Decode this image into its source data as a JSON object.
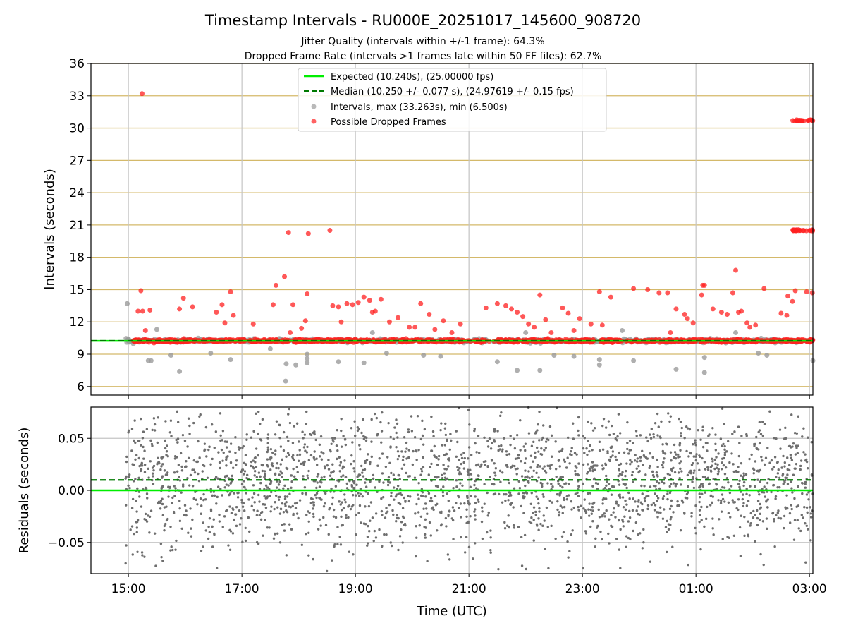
{
  "figure": {
    "title": "Timestamp Intervals - RU000E_20251017_145600_908720",
    "subtitle_1": "Jitter Quality (intervals within +/-1 frame): 64.3%",
    "subtitle_2": "Dropped Frame Rate (intervals >1 frames late within 50 FF files): 62.7%",
    "colors": {
      "expected": "#00ee00",
      "median": "#007a00",
      "intervals": "#9b9b9b",
      "dropped": "#ff2020",
      "residuals": "#6e6e6e",
      "hgrid": "#d4b96a",
      "vgrid": "#c4c4c4"
    }
  },
  "chart_data": [
    {
      "type": "scatter",
      "panel": "intervals",
      "ylabel": "Intervals (seconds)",
      "xlabel": "",
      "x_unit": "hours since 00:00 UTC (day 1); values >24 are next day",
      "xlim": [
        14.34,
        27.06
      ],
      "ylim": [
        5.2,
        36
      ],
      "yticks": [
        6,
        9,
        12,
        15,
        18,
        21,
        24,
        27,
        30,
        33,
        36
      ],
      "ytick_labels": [
        "6",
        "9",
        "12",
        "15",
        "18",
        "21",
        "24",
        "27",
        "30",
        "33",
        "36"
      ],
      "xticks": [
        15,
        17,
        19,
        21,
        23,
        25,
        27
      ],
      "hgrid": true,
      "vgrid": true,
      "legend": {
        "placement": "upper-center",
        "entries": [
          "Expected (10.240s), (25.00000 fps)",
          "Median (10.250 +/- 0.077 s), (24.97619 +/- 0.15 fps)",
          "Intervals, max (33.263s), min (6.500s)",
          "Possible Dropped Frames"
        ]
      },
      "series": [
        {
          "name": "Expected",
          "kind": "hline",
          "y": 10.24,
          "style": "solid",
          "x_range": [
            14.34,
            27.06
          ]
        },
        {
          "name": "Median",
          "kind": "hline",
          "y": 10.25,
          "style": "dashed",
          "x_range": [
            14.34,
            27.06
          ]
        },
        {
          "name": "Intervals",
          "kind": "scatter",
          "baseline": 10.25,
          "x_range": [
            14.95,
            27.06
          ],
          "outliers": [
            {
              "x": 14.98,
              "y": 13.7
            },
            {
              "x": 15.35,
              "y": 8.4
            },
            {
              "x": 15.4,
              "y": 8.4
            },
            {
              "x": 15.5,
              "y": 11.3
            },
            {
              "x": 15.9,
              "y": 7.4
            },
            {
              "x": 15.75,
              "y": 8.9
            },
            {
              "x": 16.45,
              "y": 9.1
            },
            {
              "x": 16.8,
              "y": 8.5
            },
            {
              "x": 17.5,
              "y": 9.5
            },
            {
              "x": 17.77,
              "y": 6.5
            },
            {
              "x": 17.78,
              "y": 8.1
            },
            {
              "x": 17.95,
              "y": 8.0
            },
            {
              "x": 18.15,
              "y": 8.2
            },
            {
              "x": 18.15,
              "y": 8.6
            },
            {
              "x": 18.15,
              "y": 9.0
            },
            {
              "x": 18.7,
              "y": 8.3
            },
            {
              "x": 19.15,
              "y": 8.2
            },
            {
              "x": 19.55,
              "y": 9.1
            },
            {
              "x": 20.2,
              "y": 8.9
            },
            {
              "x": 20.5,
              "y": 8.8
            },
            {
              "x": 21.5,
              "y": 8.3
            },
            {
              "x": 21.85,
              "y": 7.5
            },
            {
              "x": 22.25,
              "y": 7.5
            },
            {
              "x": 22.5,
              "y": 8.9
            },
            {
              "x": 22.85,
              "y": 8.8
            },
            {
              "x": 23.3,
              "y": 8.5
            },
            {
              "x": 23.3,
              "y": 8.0
            },
            {
              "x": 23.9,
              "y": 8.4
            },
            {
              "x": 24.65,
              "y": 7.6
            },
            {
              "x": 25.15,
              "y": 7.3
            },
            {
              "x": 25.15,
              "y": 8.7
            },
            {
              "x": 26.1,
              "y": 9.1
            },
            {
              "x": 26.25,
              "y": 8.9
            },
            {
              "x": 27.06,
              "y": 8.4
            },
            {
              "x": 19.3,
              "y": 11.0
            },
            {
              "x": 22.0,
              "y": 11.0
            },
            {
              "x": 23.7,
              "y": 11.2
            },
            {
              "x": 25.7,
              "y": 11.0
            }
          ]
        },
        {
          "name": "Possible Dropped Frames",
          "kind": "scatter",
          "baseline": 10.25,
          "clusters": [
            {
              "y": 20.5,
              "x_range": [
                26.7,
                27.06
              ]
            },
            {
              "y": 30.7,
              "x_range": [
                26.7,
                27.06
              ]
            }
          ],
          "points": [
            {
              "x": 15.24,
              "y": 33.2
            },
            {
              "x": 15.17,
              "y": 13.0
            },
            {
              "x": 15.22,
              "y": 14.9
            },
            {
              "x": 15.25,
              "y": 13.0
            },
            {
              "x": 15.38,
              "y": 13.1
            },
            {
              "x": 15.3,
              "y": 11.2
            },
            {
              "x": 15.9,
              "y": 13.2
            },
            {
              "x": 15.97,
              "y": 14.2
            },
            {
              "x": 16.13,
              "y": 13.4
            },
            {
              "x": 16.55,
              "y": 12.9
            },
            {
              "x": 16.65,
              "y": 13.6
            },
            {
              "x": 16.8,
              "y": 14.8
            },
            {
              "x": 16.85,
              "y": 12.6
            },
            {
              "x": 16.7,
              "y": 11.9
            },
            {
              "x": 17.2,
              "y": 11.8
            },
            {
              "x": 17.55,
              "y": 13.6
            },
            {
              "x": 17.6,
              "y": 15.4
            },
            {
              "x": 17.75,
              "y": 16.2
            },
            {
              "x": 17.82,
              "y": 20.3
            },
            {
              "x": 17.85,
              "y": 11.0
            },
            {
              "x": 17.9,
              "y": 13.6
            },
            {
              "x": 18.05,
              "y": 11.4
            },
            {
              "x": 18.12,
              "y": 12.1
            },
            {
              "x": 18.15,
              "y": 14.6
            },
            {
              "x": 18.17,
              "y": 20.2
            },
            {
              "x": 18.55,
              "y": 20.5
            },
            {
              "x": 18.6,
              "y": 13.5
            },
            {
              "x": 18.7,
              "y": 13.4
            },
            {
              "x": 18.75,
              "y": 12.0
            },
            {
              "x": 18.85,
              "y": 13.7
            },
            {
              "x": 18.95,
              "y": 13.6
            },
            {
              "x": 19.05,
              "y": 13.8
            },
            {
              "x": 19.15,
              "y": 14.3
            },
            {
              "x": 19.25,
              "y": 14.0
            },
            {
              "x": 19.3,
              "y": 12.9
            },
            {
              "x": 19.35,
              "y": 13.0
            },
            {
              "x": 19.45,
              "y": 14.1
            },
            {
              "x": 19.6,
              "y": 12.0
            },
            {
              "x": 19.75,
              "y": 12.4
            },
            {
              "x": 19.95,
              "y": 11.5
            },
            {
              "x": 20.05,
              "y": 11.5
            },
            {
              "x": 20.15,
              "y": 13.7
            },
            {
              "x": 20.3,
              "y": 12.7
            },
            {
              "x": 20.4,
              "y": 11.3
            },
            {
              "x": 20.55,
              "y": 12.1
            },
            {
              "x": 20.7,
              "y": 11.0
            },
            {
              "x": 20.85,
              "y": 11.8
            },
            {
              "x": 21.3,
              "y": 13.3
            },
            {
              "x": 21.5,
              "y": 13.7
            },
            {
              "x": 21.65,
              "y": 13.5
            },
            {
              "x": 21.75,
              "y": 13.2
            },
            {
              "x": 21.85,
              "y": 12.9
            },
            {
              "x": 21.95,
              "y": 12.5
            },
            {
              "x": 22.05,
              "y": 11.8
            },
            {
              "x": 22.15,
              "y": 11.5
            },
            {
              "x": 22.25,
              "y": 14.5
            },
            {
              "x": 22.35,
              "y": 12.2
            },
            {
              "x": 22.45,
              "y": 11.0
            },
            {
              "x": 22.65,
              "y": 13.3
            },
            {
              "x": 22.75,
              "y": 12.8
            },
            {
              "x": 22.85,
              "y": 11.2
            },
            {
              "x": 22.95,
              "y": 12.3
            },
            {
              "x": 23.15,
              "y": 11.8
            },
            {
              "x": 23.3,
              "y": 14.8
            },
            {
              "x": 23.35,
              "y": 11.7
            },
            {
              "x": 23.5,
              "y": 14.3
            },
            {
              "x": 23.9,
              "y": 15.1
            },
            {
              "x": 24.15,
              "y": 15.0
            },
            {
              "x": 24.35,
              "y": 14.7
            },
            {
              "x": 24.5,
              "y": 14.7
            },
            {
              "x": 24.65,
              "y": 13.2
            },
            {
              "x": 24.8,
              "y": 12.7
            },
            {
              "x": 24.85,
              "y": 12.3
            },
            {
              "x": 24.95,
              "y": 11.9
            },
            {
              "x": 24.55,
              "y": 11.0
            },
            {
              "x": 25.12,
              "y": 15.4
            },
            {
              "x": 25.15,
              "y": 15.4
            },
            {
              "x": 25.1,
              "y": 14.5
            },
            {
              "x": 25.3,
              "y": 13.2
            },
            {
              "x": 25.45,
              "y": 12.9
            },
            {
              "x": 25.55,
              "y": 12.7
            },
            {
              "x": 25.65,
              "y": 14.7
            },
            {
              "x": 25.7,
              "y": 16.8
            },
            {
              "x": 25.75,
              "y": 12.9
            },
            {
              "x": 25.8,
              "y": 13.0
            },
            {
              "x": 25.9,
              "y": 11.9
            },
            {
              "x": 25.95,
              "y": 11.5
            },
            {
              "x": 26.05,
              "y": 11.7
            },
            {
              "x": 26.2,
              "y": 15.1
            },
            {
              "x": 26.5,
              "y": 12.8
            },
            {
              "x": 26.6,
              "y": 12.6
            },
            {
              "x": 26.62,
              "y": 14.4
            },
            {
              "x": 26.7,
              "y": 13.9
            },
            {
              "x": 26.75,
              "y": 14.9
            },
            {
              "x": 26.95,
              "y": 14.8
            },
            {
              "x": 27.05,
              "y": 14.7
            }
          ]
        }
      ]
    },
    {
      "type": "scatter",
      "panel": "residuals",
      "ylabel": "Residuals (seconds)",
      "xlabel": "Time (UTC)",
      "xlim": [
        14.34,
        27.06
      ],
      "ylim": [
        -0.08,
        0.08
      ],
      "yticks": [
        -0.05,
        0.0,
        0.05
      ],
      "ytick_labels": [
        "−0.05",
        "0.00",
        "0.05"
      ],
      "xticks": [
        15,
        17,
        19,
        21,
        23,
        25,
        27
      ],
      "xtick_labels": [
        "15:00",
        "17:00",
        "19:00",
        "21:00",
        "23:00",
        "01:00",
        "03:00"
      ],
      "hgrid": true,
      "vgrid": true,
      "series": [
        {
          "name": "Expected",
          "kind": "hline",
          "y": 0.0,
          "style": "solid"
        },
        {
          "name": "Median offset",
          "kind": "hline",
          "y": 0.01,
          "style": "dashed"
        },
        {
          "name": "Residuals",
          "kind": "scatter",
          "x_range": [
            14.95,
            27.06
          ],
          "center": 0.01,
          "spread": 0.05,
          "count": 2400
        }
      ]
    }
  ]
}
